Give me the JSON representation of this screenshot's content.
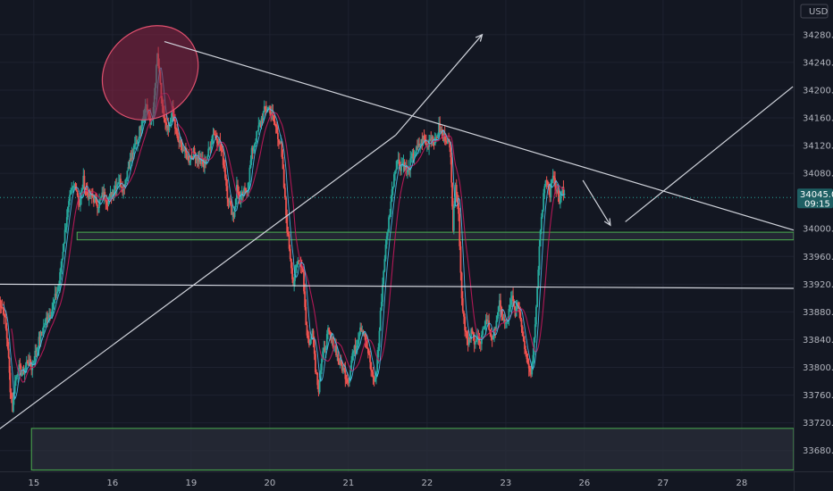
{
  "chart_data": {
    "type": "candlestick",
    "currency": "USD",
    "y_axis_ticks": [
      34280,
      34240,
      34200,
      34160,
      34120,
      34080,
      34000,
      33960,
      33920,
      33880,
      33840,
      33800,
      33760,
      33720,
      33680
    ],
    "y_axis_tick_labels": [
      "34280.0",
      "34240.0",
      "34200.0",
      "34160.0",
      "34120.0",
      "34080.0",
      "34000.0",
      "33960.0",
      "33920.0",
      "33880.0",
      "33840.0",
      "33800.0",
      "33760.0",
      "33720.0",
      "33680.0"
    ],
    "ylim": [
      33650,
      34330
    ],
    "x_axis_ticks": [
      {
        "label": "15",
        "t": 0
      },
      {
        "label": "16",
        "t": 1
      },
      {
        "label": "19",
        "t": 2
      },
      {
        "label": "20",
        "t": 3
      },
      {
        "label": "21",
        "t": 4
      },
      {
        "label": "22",
        "t": 5
      },
      {
        "label": "23",
        "t": 6
      },
      {
        "label": "26",
        "t": 7
      },
      {
        "label": "27",
        "t": 8
      },
      {
        "label": "28",
        "t": 9
      }
    ],
    "xlim": [
      -0.43,
      9.66
    ],
    "current_price": {
      "value": 34045,
      "label": "34045.0",
      "countdown": "09:15"
    },
    "price_path": [
      [
        -0.45,
        33900
      ],
      [
        -0.38,
        33880
      ],
      [
        -0.33,
        33830
      ],
      [
        -0.3,
        33770
      ],
      [
        -0.27,
        33740
      ],
      [
        -0.24,
        33780
      ],
      [
        -0.2,
        33800
      ],
      [
        -0.14,
        33790
      ],
      [
        -0.08,
        33810
      ],
      [
        -0.03,
        33800
      ],
      [
        0.04,
        33830
      ],
      [
        0.1,
        33850
      ],
      [
        0.16,
        33870
      ],
      [
        0.22,
        33880
      ],
      [
        0.27,
        33900
      ],
      [
        0.32,
        33920
      ],
      [
        0.37,
        33970
      ],
      [
        0.42,
        34020
      ],
      [
        0.47,
        34050
      ],
      [
        0.53,
        34065
      ],
      [
        0.58,
        34035
      ],
      [
        0.63,
        34070
      ],
      [
        0.68,
        34050
      ],
      [
        0.75,
        34045
      ],
      [
        0.82,
        34035
      ],
      [
        0.88,
        34050
      ],
      [
        0.95,
        34040
      ],
      [
        1.02,
        34060
      ],
      [
        1.08,
        34070
      ],
      [
        1.14,
        34060
      ],
      [
        1.2,
        34090
      ],
      [
        1.26,
        34110
      ],
      [
        1.32,
        34130
      ],
      [
        1.38,
        34160
      ],
      [
        1.43,
        34180
      ],
      [
        1.48,
        34150
      ],
      [
        1.52,
        34170
      ],
      [
        1.57,
        34250
      ],
      [
        1.62,
        34190
      ],
      [
        1.66,
        34150
      ],
      [
        1.71,
        34140
      ],
      [
        1.76,
        34170
      ],
      [
        1.82,
        34130
      ],
      [
        1.87,
        34120
      ],
      [
        1.92,
        34110
      ],
      [
        1.97,
        34100
      ],
      [
        2.03,
        34110
      ],
      [
        2.1,
        34100
      ],
      [
        2.16,
        34090
      ],
      [
        2.22,
        34110
      ],
      [
        2.28,
        34140
      ],
      [
        2.33,
        34130
      ],
      [
        2.37,
        34120
      ],
      [
        2.42,
        34090
      ],
      [
        2.46,
        34050
      ],
      [
        2.5,
        34030
      ],
      [
        2.54,
        34020
      ],
      [
        2.58,
        34060
      ],
      [
        2.62,
        34040
      ],
      [
        2.66,
        34050
      ],
      [
        2.72,
        34060
      ],
      [
        2.77,
        34110
      ],
      [
        2.82,
        34130
      ],
      [
        2.87,
        34150
      ],
      [
        2.93,
        34170
      ],
      [
        2.99,
        34175
      ],
      [
        3.04,
        34160
      ],
      [
        3.09,
        34140
      ],
      [
        3.14,
        34120
      ],
      [
        3.18,
        34060
      ],
      [
        3.22,
        34000
      ],
      [
        3.26,
        33960
      ],
      [
        3.3,
        33920
      ],
      [
        3.33,
        33940
      ],
      [
        3.37,
        33960
      ],
      [
        3.42,
        33940
      ],
      [
        3.46,
        33860
      ],
      [
        3.5,
        33830
      ],
      [
        3.54,
        33860
      ],
      [
        3.58,
        33800
      ],
      [
        3.62,
        33770
      ],
      [
        3.66,
        33810
      ],
      [
        3.7,
        33830
      ],
      [
        3.74,
        33850
      ],
      [
        3.78,
        33840
      ],
      [
        3.83,
        33830
      ],
      [
        3.87,
        33810
      ],
      [
        3.92,
        33800
      ],
      [
        3.96,
        33790
      ],
      [
        4.0,
        33780
      ],
      [
        4.05,
        33820
      ],
      [
        4.1,
        33830
      ],
      [
        4.15,
        33860
      ],
      [
        4.2,
        33850
      ],
      [
        4.25,
        33820
      ],
      [
        4.3,
        33790
      ],
      [
        4.34,
        33780
      ],
      [
        4.38,
        33830
      ],
      [
        4.42,
        33900
      ],
      [
        4.46,
        33960
      ],
      [
        4.5,
        34000
      ],
      [
        4.54,
        34040
      ],
      [
        4.58,
        34080
      ],
      [
        4.62,
        34100
      ],
      [
        4.66,
        34090
      ],
      [
        4.7,
        34095
      ],
      [
        4.75,
        34080
      ],
      [
        4.8,
        34100
      ],
      [
        4.85,
        34110
      ],
      [
        4.9,
        34120
      ],
      [
        4.95,
        34130
      ],
      [
        5.0,
        34120
      ],
      [
        5.05,
        34135
      ],
      [
        5.1,
        34125
      ],
      [
        5.15,
        34145
      ],
      [
        5.2,
        34135
      ],
      [
        5.25,
        34130
      ],
      [
        5.3,
        34110
      ],
      [
        5.33,
        34000
      ],
      [
        5.36,
        34070
      ],
      [
        5.4,
        34020
      ],
      [
        5.44,
        33900
      ],
      [
        5.48,
        33860
      ],
      [
        5.52,
        33830
      ],
      [
        5.56,
        33850
      ],
      [
        5.6,
        33840
      ],
      [
        5.64,
        33845
      ],
      [
        5.68,
        33830
      ],
      [
        5.72,
        33860
      ],
      [
        5.76,
        33870
      ],
      [
        5.8,
        33850
      ],
      [
        5.84,
        33840
      ],
      [
        5.88,
        33870
      ],
      [
        5.92,
        33890
      ],
      [
        5.96,
        33870
      ],
      [
        6.0,
        33860
      ],
      [
        6.04,
        33880
      ],
      [
        6.08,
        33900
      ],
      [
        6.12,
        33880
      ],
      [
        6.16,
        33890
      ],
      [
        6.2,
        33860
      ],
      [
        6.24,
        33830
      ],
      [
        6.28,
        33810
      ],
      [
        6.32,
        33790
      ],
      [
        6.36,
        33840
      ],
      [
        6.4,
        33920
      ],
      [
        6.44,
        34000
      ],
      [
        6.48,
        34050
      ],
      [
        6.52,
        34070
      ],
      [
        6.56,
        34050
      ],
      [
        6.6,
        34080
      ],
      [
        6.64,
        34060
      ],
      [
        6.68,
        34040
      ],
      [
        6.72,
        34055
      ],
      [
        6.76,
        34045
      ]
    ],
    "drawings": {
      "descending_trendline": [
        [
          1.66,
          34270
        ],
        [
          9.66,
          33998
        ]
      ],
      "ascending_trendline": [
        [
          -0.45,
          33710
        ],
        [
          4.6,
          34135
        ]
      ],
      "ascending_arrow": [
        [
          4.6,
          34135
        ],
        [
          5.7,
          34280
        ]
      ],
      "horizontal_line": [
        [
          -0.43,
          33920
        ],
        [
          9.66,
          33914
        ]
      ],
      "small_arrow": [
        [
          6.98,
          34070
        ],
        [
          7.33,
          34005
        ]
      ],
      "long_arrow": [
        [
          7.52,
          34010
        ],
        [
          9.65,
          34205
        ]
      ],
      "support_zone_upper": {
        "from": 0.55,
        "to": 9.66,
        "top": 33995,
        "bottom": 33984
      },
      "support_zone_lower": {
        "from": -0.03,
        "to": 9.66,
        "top": 33712,
        "bottom": 33652
      },
      "ellipse": {
        "cx": 1.48,
        "cy": 34225,
        "rx": 0.65,
        "ry": 63,
        "angle": -42
      }
    },
    "colors": {
      "background": "#131722",
      "grid": "#1e2230",
      "up_candle": "#26a69a",
      "down_candle": "#ef5350",
      "moving_average": "#c2185b",
      "moving_average_fast": "#4fc3f7",
      "trendline": "#d1d4dc",
      "zone_border": "#4caf50",
      "zone_fill": "#2a2e39",
      "ellipse_fill": "#8e2545",
      "ellipse_border": "#e0506e",
      "price_tag": "#1e5f63",
      "price_line": "#26a69a"
    }
  }
}
